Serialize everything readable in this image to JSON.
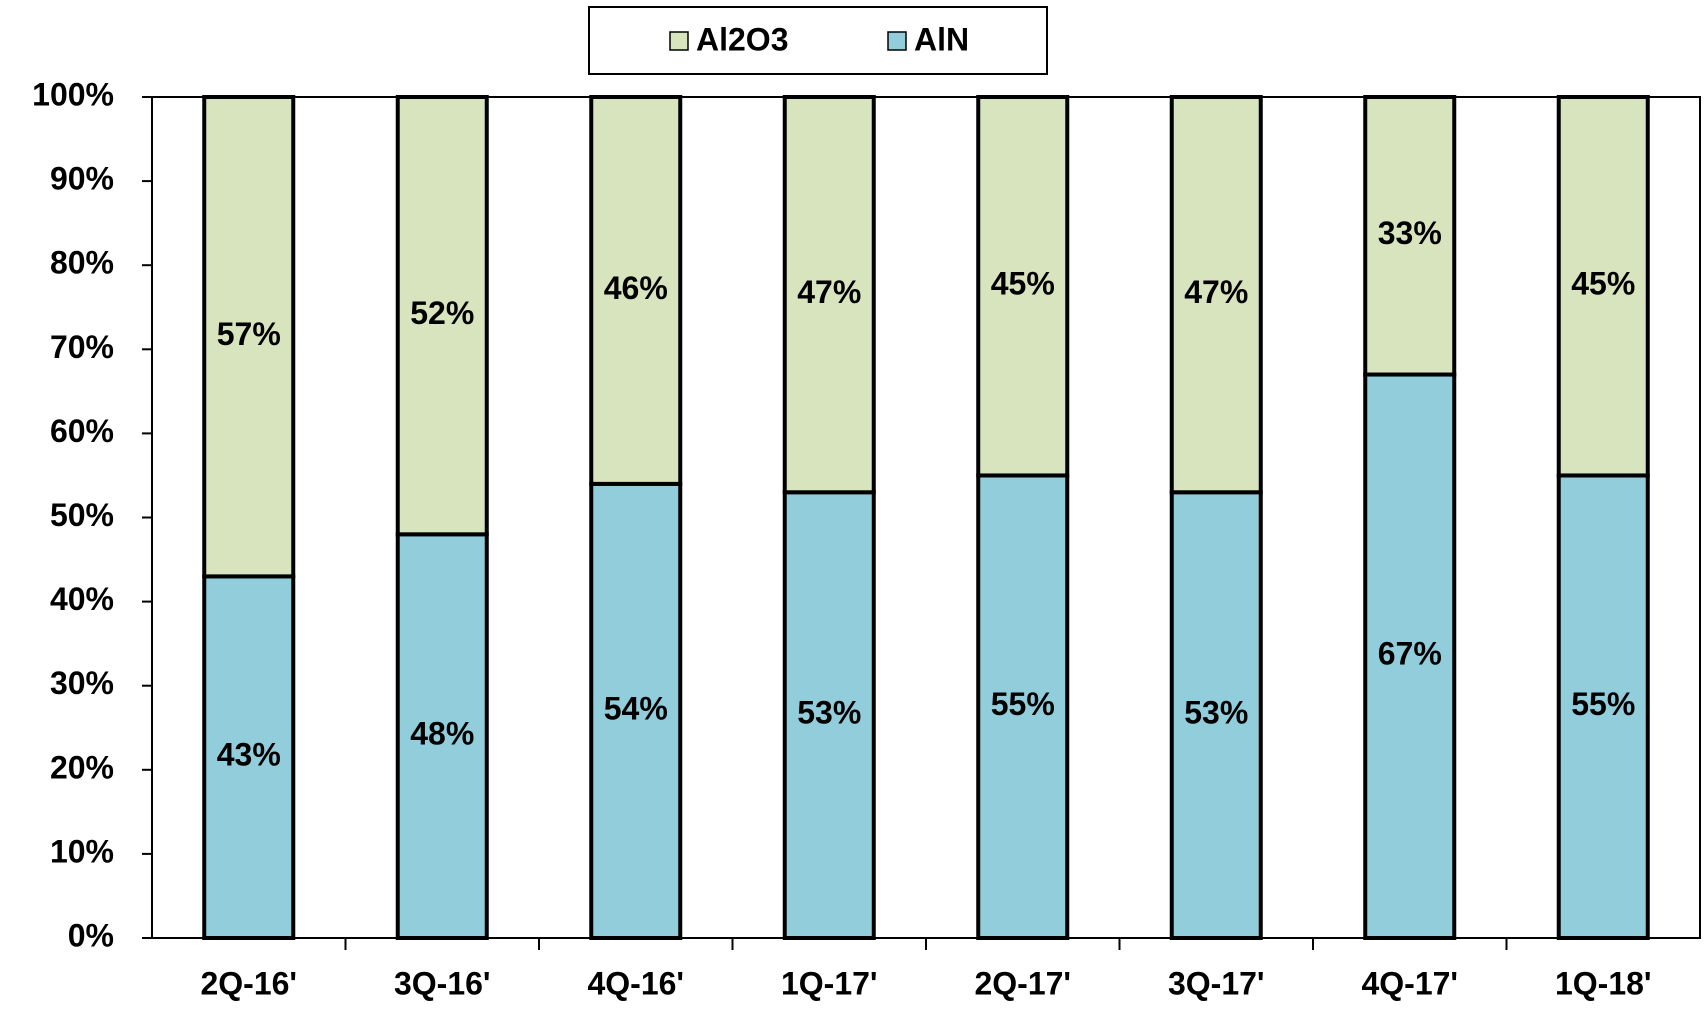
{
  "chart_data": {
    "type": "stacked_bar",
    "categories": [
      "2Q-16'",
      "3Q-16'",
      "4Q-16'",
      "1Q-17'",
      "2Q-17'",
      "3Q-17'",
      "4Q-17'",
      "1Q-18'"
    ],
    "series": [
      {
        "name": "AlN",
        "color": "#92cddc",
        "values": [
          43,
          48,
          54,
          53,
          55,
          53,
          67,
          55
        ],
        "value_labels": [
          "43%",
          "48%",
          "54%",
          "53%",
          "55%",
          "53%",
          "67%",
          "55%"
        ]
      },
      {
        "name": "Al2O3",
        "color": "#d7e4bd",
        "values": [
          57,
          52,
          46,
          47,
          45,
          47,
          33,
          45
        ],
        "value_labels": [
          "57%",
          "52%",
          "46%",
          "47%",
          "45%",
          "47%",
          "33%",
          "45%"
        ]
      }
    ],
    "ylim": [
      0,
      100
    ],
    "yticks": [
      {
        "value": 0,
        "label": "0%"
      },
      {
        "value": 10,
        "label": "10%"
      },
      {
        "value": 20,
        "label": "20%"
      },
      {
        "value": 30,
        "label": "30%"
      },
      {
        "value": 40,
        "label": "40%"
      },
      {
        "value": 50,
        "label": "50%"
      },
      {
        "value": 60,
        "label": "60%"
      },
      {
        "value": 70,
        "label": "70%"
      },
      {
        "value": 80,
        "label": "80%"
      },
      {
        "value": 90,
        "label": "90%"
      },
      {
        "value": 100,
        "label": "100%"
      }
    ],
    "grid": false
  }
}
